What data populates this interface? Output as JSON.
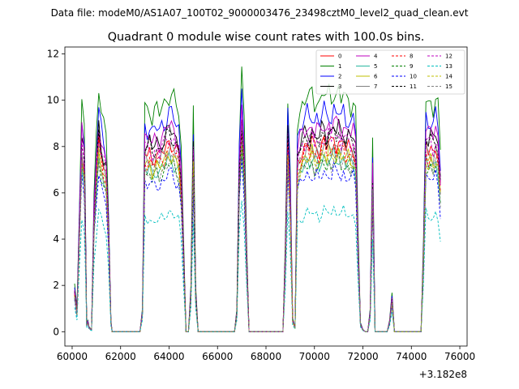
{
  "chart_data": {
    "type": "line",
    "supertitle": "Data file: modeM0/AS1A07_100T02_9000003476_23498cztM0_level2_quad_clean.evt",
    "title": "Quadrant 0 module wise count rates with 100.0s bins.",
    "xlabel": "",
    "ylabel": "",
    "x_offset_label": "+3.182e8",
    "xlim": [
      59700,
      76300
    ],
    "ylim": [
      -0.62,
      12.3
    ],
    "x_ticks": [
      60000,
      62000,
      64000,
      66000,
      68000,
      70000,
      72000,
      74000,
      76000
    ],
    "y_ticks": [
      0,
      2,
      4,
      6,
      8,
      10,
      12
    ],
    "legend_location": "top-right",
    "series": [
      {
        "name": "0",
        "color": "#ff0000",
        "dash": "solid",
        "level": 7.9
      },
      {
        "name": "1",
        "color": "#008000",
        "dash": "solid",
        "level": 9.9
      },
      {
        "name": "2",
        "color": "#0000ff",
        "dash": "solid",
        "level": 9.1
      },
      {
        "name": "3",
        "color": "#000000",
        "dash": "solid",
        "level": 8.4
      },
      {
        "name": "4",
        "color": "#bf00bf",
        "dash": "solid",
        "level": 8.6
      },
      {
        "name": "5",
        "color": "#2ab7a0",
        "dash": "solid",
        "level": 7.2
      },
      {
        "name": "6",
        "color": "#bfbf00",
        "dash": "solid",
        "level": 7.4
      },
      {
        "name": "7",
        "color": "#808080",
        "dash": "solid",
        "level": 7.7
      },
      {
        "name": "8",
        "color": "#ff0000",
        "dash": "dashed",
        "level": 7.6
      },
      {
        "name": "9",
        "color": "#008000",
        "dash": "dashed",
        "level": 7.0
      },
      {
        "name": "10",
        "color": "#0000ff",
        "dash": "dashed",
        "level": 6.6
      },
      {
        "name": "11",
        "color": "#000000",
        "dash": "dashed",
        "level": 8.2
      },
      {
        "name": "12",
        "color": "#bf00bf",
        "dash": "dashed",
        "level": 8.1
      },
      {
        "name": "13",
        "color": "#00bfbf",
        "dash": "dashed",
        "level": 5.0
      },
      {
        "name": "14",
        "color": "#bfbf00",
        "dash": "dashed",
        "level": 7.3
      },
      {
        "name": "15",
        "color": "#808080",
        "dash": "dashed",
        "level": 7.1
      }
    ],
    "shape_profile": [
      [
        60100,
        0.21
      ],
      [
        60200,
        0.1
      ],
      [
        60300,
        0.55
      ],
      [
        60400,
        1.0
      ],
      [
        60500,
        0.9
      ],
      [
        60550,
        0.5
      ],
      [
        60600,
        0.04
      ],
      [
        60650,
        0.05
      ],
      [
        60700,
        0.02
      ],
      [
        60800,
        0.01
      ],
      [
        60900,
        0.6
      ],
      [
        61000,
        0.85
      ],
      [
        61100,
        1.05
      ],
      [
        61200,
        0.96
      ],
      [
        61300,
        0.9
      ],
      [
        61400,
        0.86
      ],
      [
        61500,
        0.55
      ],
      [
        61600,
        0.05
      ],
      [
        61650,
        0.0
      ],
      [
        62800,
        0.0
      ],
      [
        62900,
        0.1
      ],
      [
        63000,
        0.98
      ],
      [
        63100,
        0.96
      ],
      [
        63200,
        0.98
      ],
      [
        63300,
        0.94
      ],
      [
        63400,
        0.96
      ],
      [
        63500,
        0.97
      ],
      [
        63600,
        0.95
      ],
      [
        63700,
        0.98
      ],
      [
        63800,
        0.99
      ],
      [
        63900,
        1.02
      ],
      [
        64000,
        1.04
      ],
      [
        64100,
        1.03
      ],
      [
        64200,
        1.01
      ],
      [
        64300,
        0.98
      ],
      [
        64400,
        0.96
      ],
      [
        64500,
        0.8
      ],
      [
        64600,
        0.4
      ],
      [
        64700,
        0.0
      ],
      [
        64800,
        0.0
      ],
      [
        64900,
        0.2
      ],
      [
        65000,
        0.96
      ],
      [
        65100,
        0.2
      ],
      [
        65200,
        0.0
      ],
      [
        66700,
        0.0
      ],
      [
        66800,
        0.1
      ],
      [
        66900,
        0.85
      ],
      [
        67000,
        1.12
      ],
      [
        67100,
        0.9
      ],
      [
        67200,
        0.4
      ],
      [
        67300,
        0.0
      ],
      [
        68700,
        0.0
      ],
      [
        68800,
        0.4
      ],
      [
        68900,
        1.03
      ],
      [
        69000,
        0.7
      ],
      [
        69100,
        0.06
      ],
      [
        69200,
        0.02
      ],
      [
        69300,
        0.92
      ],
      [
        69400,
        0.96
      ],
      [
        69500,
        0.99
      ],
      [
        69600,
        1.01
      ],
      [
        69700,
        1.03
      ],
      [
        69800,
        1.01
      ],
      [
        69900,
        1.04
      ],
      [
        70000,
        1.0
      ],
      [
        70100,
        1.02
      ],
      [
        70200,
        0.99
      ],
      [
        70300,
        1.03
      ],
      [
        70400,
        1.05
      ],
      [
        70500,
        1.01
      ],
      [
        70600,
        1.04
      ],
      [
        70700,
        1.02
      ],
      [
        70800,
        1.06
      ],
      [
        70900,
        1.03
      ],
      [
        71000,
        1.05
      ],
      [
        71100,
        1.01
      ],
      [
        71200,
        1.04
      ],
      [
        71300,
        1.0
      ],
      [
        71400,
        1.02
      ],
      [
        71500,
        0.99
      ],
      [
        71600,
        1.01
      ],
      [
        71700,
        0.95
      ],
      [
        71800,
        0.45
      ],
      [
        71900,
        0.04
      ],
      [
        72000,
        0.01
      ],
      [
        72100,
        0.0
      ],
      [
        72200,
        0.0
      ],
      [
        72300,
        0.1
      ],
      [
        72400,
        0.82
      ],
      [
        72500,
        0.0
      ],
      [
        72600,
        0.0
      ],
      [
        73000,
        0.0
      ],
      [
        73100,
        0.05
      ],
      [
        73200,
        0.17
      ],
      [
        73300,
        0.0
      ],
      [
        73400,
        0.0
      ],
      [
        74400,
        0.0
      ],
      [
        74500,
        0.4
      ],
      [
        74600,
        1.02
      ],
      [
        74700,
        0.99
      ],
      [
        74800,
        1.01
      ],
      [
        74900,
        0.98
      ],
      [
        75000,
        1.02
      ],
      [
        75100,
        0.97
      ],
      [
        75200,
        0.78
      ]
    ]
  }
}
